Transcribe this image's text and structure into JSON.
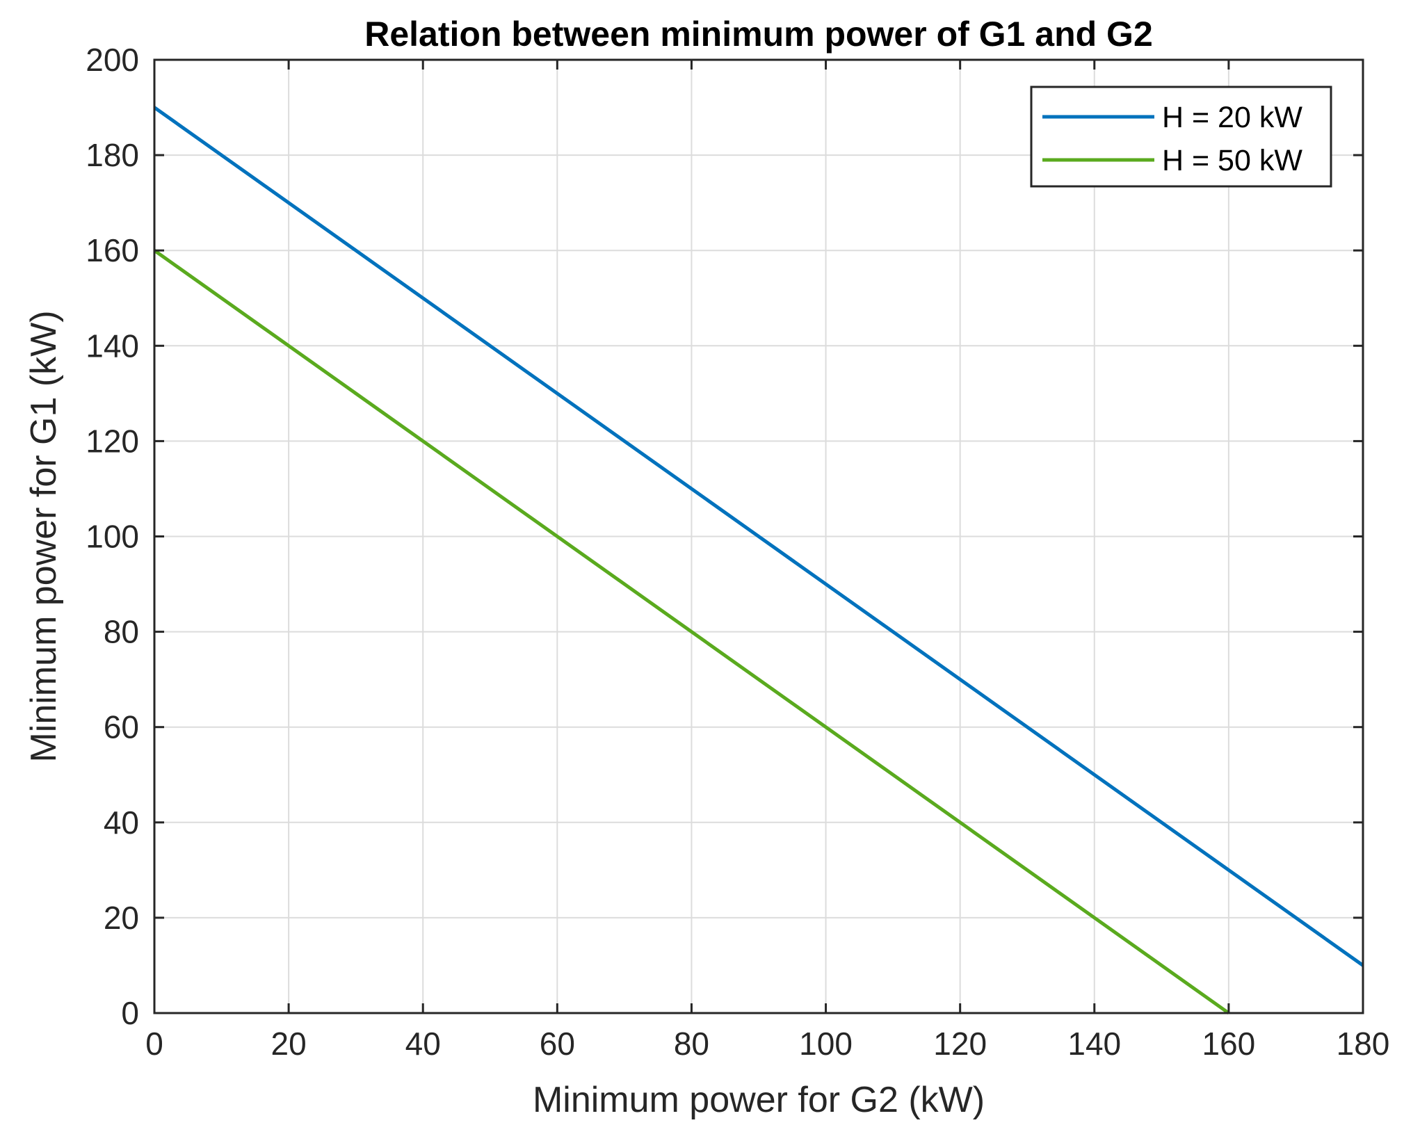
{
  "chart_data": {
    "type": "line",
    "title": "Relation between minimum power of G1 and G2",
    "xlabel": "Minimum power for G2 (kW)",
    "ylabel": "Minimum power for G1 (kW)",
    "xlim": [
      0,
      180
    ],
    "ylim": [
      0,
      200
    ],
    "xticks": [
      0,
      20,
      40,
      60,
      80,
      100,
      120,
      140,
      160,
      180
    ],
    "yticks": [
      0,
      20,
      40,
      60,
      80,
      100,
      120,
      140,
      160,
      180,
      200
    ],
    "xtick_labels": [
      "0",
      "20",
      "40",
      "60",
      "80",
      "100",
      "120",
      "140",
      "160",
      "180"
    ],
    "ytick_labels": [
      "0",
      "20",
      "40",
      "60",
      "80",
      "100",
      "120",
      "140",
      "160",
      "180",
      "200"
    ],
    "grid": true,
    "legend_position": "top-right",
    "series": [
      {
        "name": "H = 20 kW",
        "color": "#0072BD",
        "x": [
          0,
          180
        ],
        "y": [
          190,
          10
        ]
      },
      {
        "name": "H = 50 kW",
        "color": "#5AAA1E",
        "x": [
          0,
          160
        ],
        "y": [
          160,
          0
        ]
      }
    ]
  }
}
